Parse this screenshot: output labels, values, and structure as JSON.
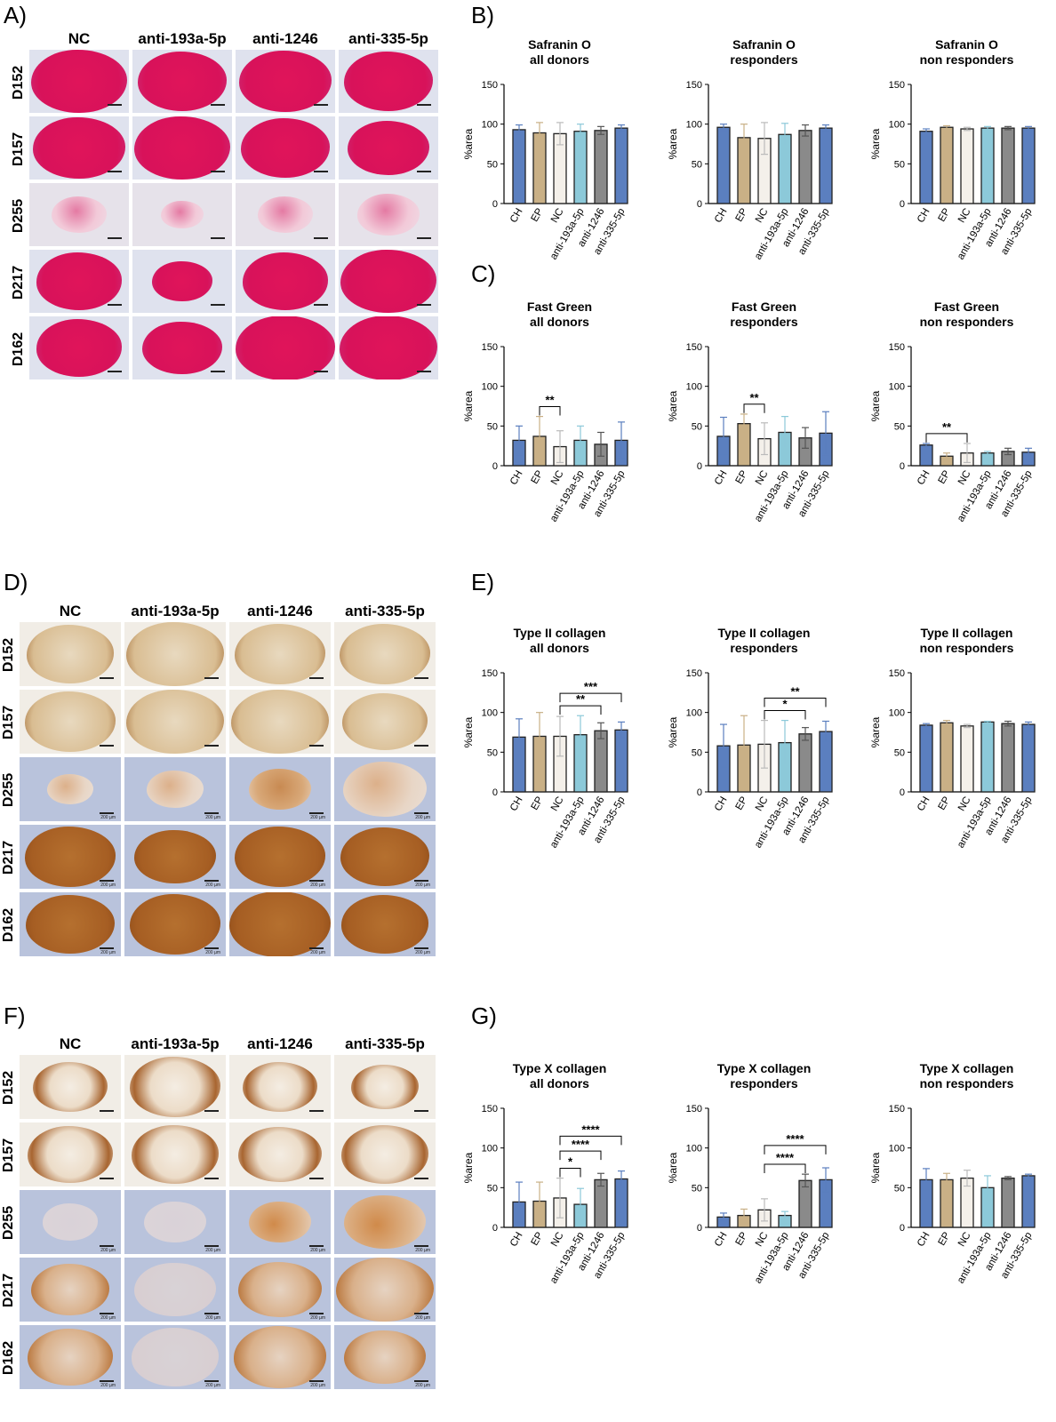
{
  "panels": {
    "A": {
      "letter": "A)",
      "columns": [
        "NC",
        "anti-193a-5p",
        "anti-1246",
        "anti-335-5p"
      ],
      "rows": [
        "D152",
        "D157",
        "D255",
        "D217",
        "D162"
      ]
    },
    "B": {
      "letter": "B)"
    },
    "C": {
      "letter": "C)"
    },
    "D": {
      "letter": "D)",
      "columns": [
        "NC",
        "anti-193a-5p",
        "anti-1246",
        "anti-335-5p"
      ],
      "rows": [
        "D152",
        "D157",
        "D255",
        "D217",
        "D162"
      ],
      "scale_label": "200 µm"
    },
    "E": {
      "letter": "E)"
    },
    "F": {
      "letter": "F)",
      "columns": [
        "NC",
        "anti-193a-5p",
        "anti-1246",
        "anti-335-5p"
      ],
      "rows": [
        "D152",
        "D157",
        "D255",
        "D217",
        "D162"
      ],
      "scale_label": "200 µm"
    },
    "G": {
      "letter": "G)"
    }
  },
  "colors": {
    "CH": "#5b7fbf",
    "EP": "#c9b086",
    "NC": "#f4f0ea",
    "anti-193a-5p": "#8cc9d9",
    "anti-1246": "#8a8a8a",
    "anti-335-5p": "#5b7fbf",
    "safranin": "#d91c5c",
    "dab": "#a8642a",
    "background_blue": "#b9c3dc"
  },
  "chart_data": [
    {
      "id": "B1",
      "type": "bar",
      "title": [
        "Safranin O",
        "all donors"
      ],
      "ylabel": "%area",
      "ylim": [
        0,
        150
      ],
      "yticks": [
        0,
        50,
        100,
        150
      ],
      "categories": [
        "CH",
        "EP",
        "NC",
        "anti-193a-5p",
        "anti-1246",
        "anti-335-5p"
      ],
      "values": [
        93,
        89,
        88,
        91,
        92,
        95
      ],
      "errors": [
        6,
        13,
        14,
        9,
        5,
        4
      ],
      "significance": []
    },
    {
      "id": "B2",
      "type": "bar",
      "title": [
        "Safranin O",
        "responders"
      ],
      "ylabel": "%area",
      "ylim": [
        0,
        150
      ],
      "yticks": [
        0,
        50,
        100,
        150
      ],
      "categories": [
        "CH",
        "EP",
        "NC",
        "anti-193a-5p",
        "anti-1246",
        "anti-335-5p"
      ],
      "values": [
        96,
        83,
        82,
        87,
        92,
        95
      ],
      "errors": [
        4,
        17,
        20,
        14,
        7,
        4
      ],
      "significance": []
    },
    {
      "id": "B3",
      "type": "bar",
      "title": [
        "Safranin O",
        "non responders"
      ],
      "ylabel": "%area",
      "ylim": [
        0,
        150
      ],
      "yticks": [
        0,
        50,
        100,
        150
      ],
      "categories": [
        "CH",
        "EP",
        "NC",
        "anti-193a-5p",
        "anti-1246",
        "anti-335-5p"
      ],
      "values": [
        91,
        96,
        94,
        95,
        95,
        95
      ],
      "errors": [
        3,
        2,
        2,
        2,
        2,
        2
      ],
      "significance": []
    },
    {
      "id": "C1",
      "type": "bar",
      "title": [
        "Fast Green",
        "all donors"
      ],
      "ylabel": "%area",
      "ylim": [
        0,
        150
      ],
      "yticks": [
        0,
        50,
        100,
        150
      ],
      "categories": [
        "CH",
        "EP",
        "NC",
        "anti-193a-5p",
        "anti-1246",
        "anti-335-5p"
      ],
      "values": [
        32,
        37,
        24,
        32,
        27,
        32
      ],
      "errors": [
        18,
        25,
        20,
        18,
        15,
        23
      ],
      "significance": [
        {
          "from": 1,
          "to": 2,
          "label": "**",
          "level": 1
        }
      ]
    },
    {
      "id": "C2",
      "type": "bar",
      "title": [
        "Fast Green",
        "responders"
      ],
      "ylabel": "%area",
      "ylim": [
        0,
        150
      ],
      "yticks": [
        0,
        50,
        100,
        150
      ],
      "categories": [
        "CH",
        "EP",
        "NC",
        "anti-193a-5p",
        "anti-1246",
        "anti-335-5p"
      ],
      "values": [
        37,
        53,
        34,
        42,
        35,
        41
      ],
      "errors": [
        24,
        12,
        20,
        20,
        13,
        27
      ],
      "significance": [
        {
          "from": 1,
          "to": 2,
          "label": "**",
          "level": 1
        }
      ]
    },
    {
      "id": "C3",
      "type": "bar",
      "title": [
        "Fast Green",
        "non responders"
      ],
      "ylabel": "%area",
      "ylim": [
        0,
        150
      ],
      "yticks": [
        0,
        50,
        100,
        150
      ],
      "categories": [
        "CH",
        "EP",
        "NC",
        "anti-193a-5p",
        "anti-1246",
        "anti-335-5p"
      ],
      "values": [
        26,
        12,
        16,
        16,
        18,
        17
      ],
      "errors": [
        2,
        4,
        12,
        2,
        4,
        5
      ],
      "significance": [
        {
          "from": 0,
          "to": 2,
          "label": "**",
          "level": 1
        }
      ]
    },
    {
      "id": "E1",
      "type": "bar",
      "title": [
        "Type II collagen",
        "all donors"
      ],
      "ylabel": "%area",
      "ylim": [
        0,
        150
      ],
      "yticks": [
        0,
        50,
        100,
        150
      ],
      "categories": [
        "CH",
        "EP",
        "NC",
        "anti-193a-5p",
        "anti-1246",
        "anti-335-5p"
      ],
      "values": [
        69,
        70,
        70,
        72,
        77,
        78
      ],
      "errors": [
        23,
        30,
        25,
        24,
        10,
        10
      ],
      "significance": [
        {
          "from": 2,
          "to": 4,
          "label": "**",
          "level": 1
        },
        {
          "from": 2,
          "to": 5,
          "label": "***",
          "level": 2
        }
      ]
    },
    {
      "id": "E2",
      "type": "bar",
      "title": [
        "Type II collagen",
        "responders"
      ],
      "ylabel": "%area",
      "ylim": [
        0,
        150
      ],
      "yticks": [
        0,
        50,
        100,
        150
      ],
      "categories": [
        "CH",
        "EP",
        "NC",
        "anti-193a-5p",
        "anti-1246",
        "anti-335-5p"
      ],
      "values": [
        58,
        59,
        60,
        62,
        73,
        76
      ],
      "errors": [
        27,
        37,
        30,
        28,
        8,
        13
      ],
      "significance": [
        {
          "from": 2,
          "to": 4,
          "label": "*",
          "level": 1
        },
        {
          "from": 2,
          "to": 5,
          "label": "**",
          "level": 2
        }
      ]
    },
    {
      "id": "E3",
      "type": "bar",
      "title": [
        "Type II collagen",
        "non responders"
      ],
      "ylabel": "%area",
      "ylim": [
        0,
        150
      ],
      "yticks": [
        0,
        50,
        100,
        150
      ],
      "categories": [
        "CH",
        "EP",
        "NC",
        "anti-193a-5p",
        "anti-1246",
        "anti-335-5p"
      ],
      "values": [
        84,
        87,
        83,
        88,
        86,
        85
      ],
      "errors": [
        2,
        3,
        2,
        1,
        3,
        3
      ],
      "significance": []
    },
    {
      "id": "G1",
      "type": "bar",
      "title": [
        "Type X collagen",
        "all donors"
      ],
      "ylabel": "%area",
      "ylim": [
        0,
        150
      ],
      "yticks": [
        0,
        50,
        100,
        150
      ],
      "categories": [
        "CH",
        "EP",
        "NC",
        "anti-193a-5p",
        "anti-1246",
        "anti-335-5p"
      ],
      "values": [
        32,
        33,
        37,
        29,
        60,
        61
      ],
      "errors": [
        25,
        24,
        25,
        20,
        8,
        10
      ],
      "significance": [
        {
          "from": 2,
          "to": 3,
          "label": "*",
          "level": 1
        },
        {
          "from": 2,
          "to": 4,
          "label": "****",
          "level": 2
        },
        {
          "from": 2,
          "to": 5,
          "label": "****",
          "level": 3
        }
      ]
    },
    {
      "id": "G2",
      "type": "bar",
      "title": [
        "Type X collagen",
        "responders"
      ],
      "ylabel": "%area",
      "ylim": [
        0,
        150
      ],
      "yticks": [
        0,
        50,
        100,
        150
      ],
      "categories": [
        "CH",
        "EP",
        "NC",
        "anti-193a-5p",
        "anti-1246",
        "anti-335-5p"
      ],
      "values": [
        13,
        15,
        22,
        15,
        59,
        60
      ],
      "errors": [
        5,
        8,
        14,
        5,
        8,
        15
      ],
      "significance": [
        {
          "from": 2,
          "to": 4,
          "label": "****",
          "level": 1
        },
        {
          "from": 2,
          "to": 5,
          "label": "****",
          "level": 2
        }
      ]
    },
    {
      "id": "G3",
      "type": "bar",
      "title": [
        "Type X collagen",
        "non responders"
      ],
      "ylabel": "%area",
      "ylim": [
        0,
        150
      ],
      "yticks": [
        0,
        50,
        100,
        150
      ],
      "categories": [
        "CH",
        "EP",
        "NC",
        "anti-193a-5p",
        "anti-1246",
        "anti-335-5p"
      ],
      "values": [
        60,
        60,
        62,
        50,
        62,
        65
      ],
      "errors": [
        14,
        8,
        10,
        15,
        2,
        2
      ],
      "significance": []
    }
  ]
}
